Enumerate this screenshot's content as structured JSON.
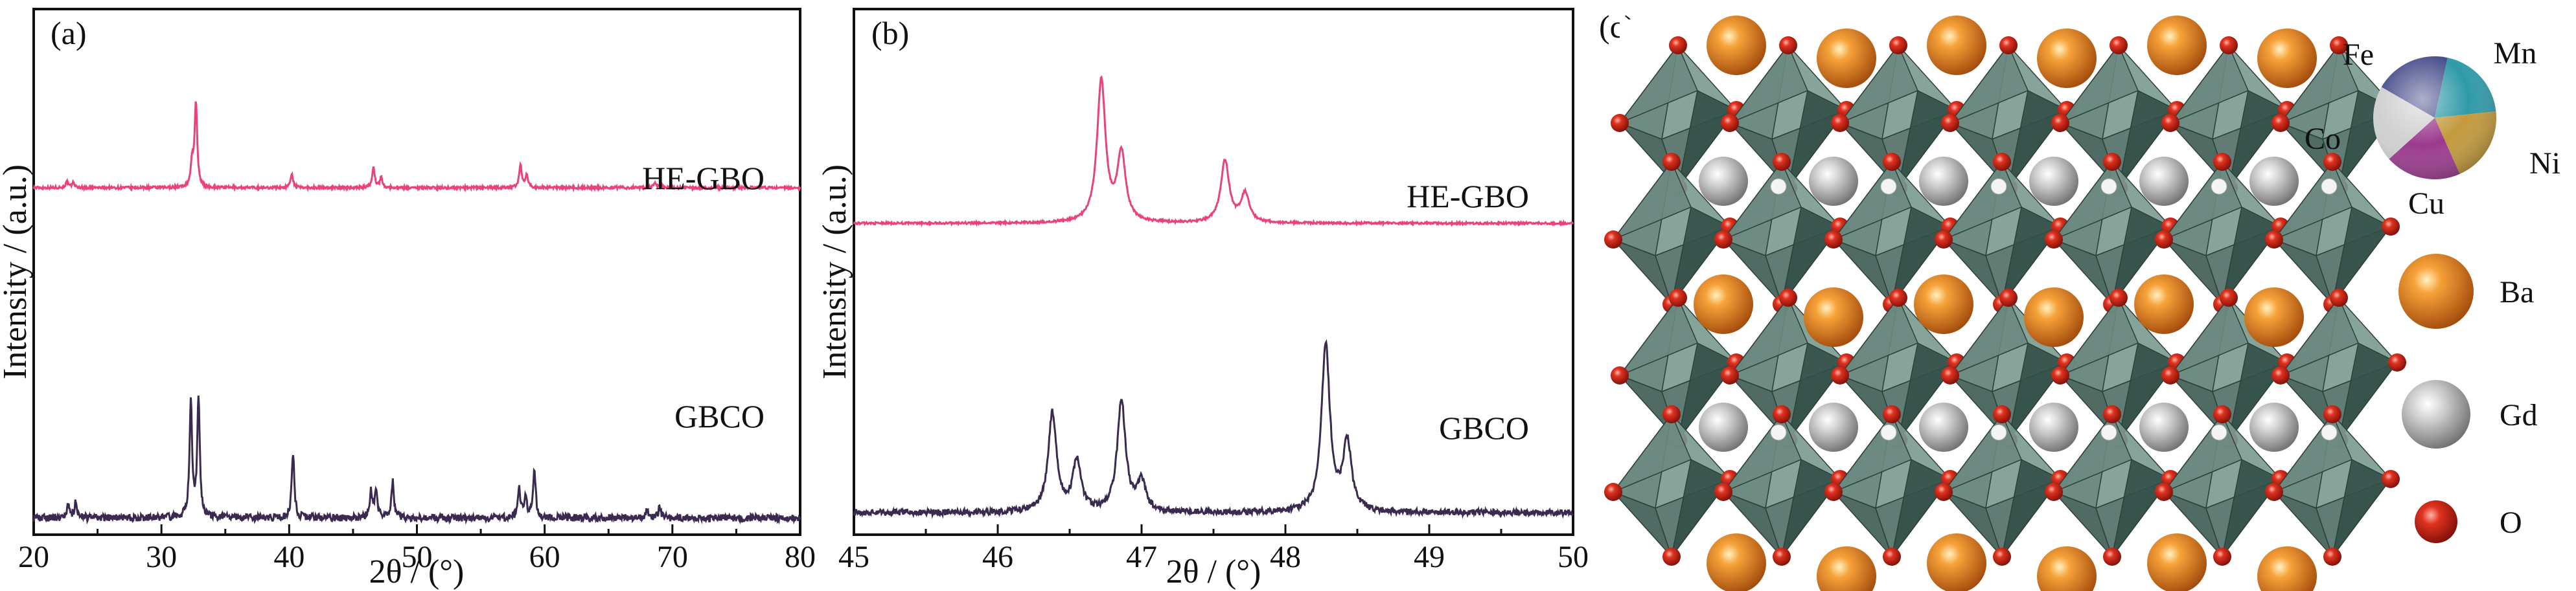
{
  "panels": {
    "a": "(a)",
    "b": "(b)",
    "c": "(c)"
  },
  "chart_data": [
    {
      "type": "line",
      "panel": "(a)",
      "xlabel": "2θ / (°)",
      "ylabel": "Intensity / (a.u.)",
      "xlim": [
        20,
        80
      ],
      "xticks": [
        20,
        30,
        40,
        50,
        60,
        70,
        80
      ],
      "yticks": "none",
      "grid": false,
      "series": [
        {
          "name": "HE-GBO",
          "color": "#e8437b",
          "baseline": 0.15,
          "peaks": [
            [
              22.6,
              0.07
            ],
            [
              23.1,
              0.06
            ],
            [
              32.4,
              0.3
            ],
            [
              32.7,
              1.0
            ],
            [
              40.2,
              0.17
            ],
            [
              46.6,
              0.24
            ],
            [
              47.2,
              0.12
            ],
            [
              58.1,
              0.27
            ],
            [
              58.6,
              0.15
            ],
            [
              68.6,
              0.06
            ],
            [
              69.1,
              0.05
            ]
          ]
        },
        {
          "name": "GBCO",
          "color": "#3b2a4f",
          "baseline": 0.04,
          "peaks": [
            [
              22.7,
              0.11
            ],
            [
              23.3,
              0.13
            ],
            [
              32.3,
              0.9
            ],
            [
              32.9,
              0.92
            ],
            [
              40.3,
              0.5
            ],
            [
              46.4,
              0.2
            ],
            [
              46.8,
              0.22
            ],
            [
              48.1,
              0.28
            ],
            [
              58.0,
              0.22
            ],
            [
              58.5,
              0.18
            ],
            [
              59.2,
              0.36
            ],
            [
              68.0,
              0.07
            ],
            [
              69.0,
              0.08
            ]
          ]
        }
      ]
    },
    {
      "type": "line",
      "panel": "(b)",
      "xlabel": "2θ / (°)",
      "ylabel": "Intensity / (a.u.)",
      "xlim": [
        45,
        50
      ],
      "xticks": [
        45,
        46,
        47,
        48,
        49,
        50
      ],
      "yticks": "none",
      "grid": false,
      "series": [
        {
          "name": "HE-GBO",
          "color": "#e8437b",
          "baseline": 0.25,
          "peaks": [
            [
              46.72,
              0.55
            ],
            [
              46.86,
              0.26
            ],
            [
              47.58,
              0.24
            ],
            [
              47.72,
              0.11
            ]
          ]
        },
        {
          "name": "GBCO",
          "color": "#3b2a4f",
          "baseline": 0.1,
          "peaks": [
            [
              46.38,
              0.4
            ],
            [
              46.55,
              0.2
            ],
            [
              46.86,
              0.45
            ],
            [
              47.0,
              0.12
            ],
            [
              48.28,
              0.68
            ],
            [
              48.43,
              0.28
            ]
          ]
        }
      ]
    }
  ],
  "legend_c": {
    "site_elements": [
      "Fe",
      "Mn",
      "Co",
      "Ni",
      "Cu"
    ],
    "site_colors": [
      "#4a4f8c",
      "#2f9aa8",
      "#d0d0d0",
      "#c39a3c",
      "#9b3a8e"
    ],
    "ba": {
      "label": "Ba",
      "color": "#e8831f"
    },
    "gd": {
      "label": "Gd",
      "color": "#cfcfcf"
    },
    "o": {
      "label": "O",
      "color": "#d8281e"
    }
  }
}
